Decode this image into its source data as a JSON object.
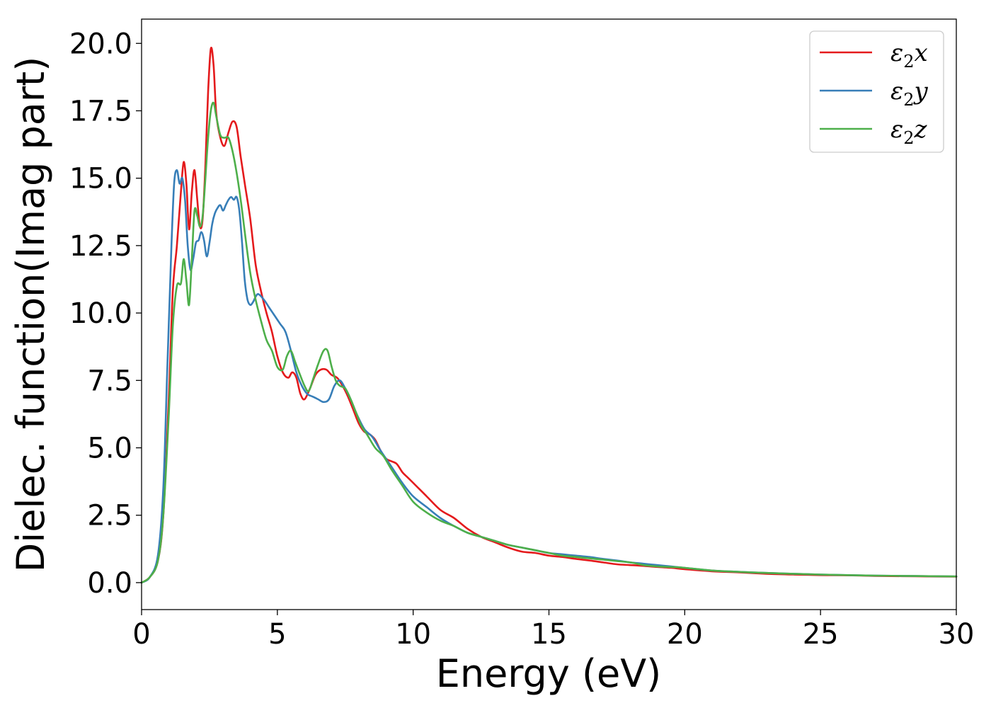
{
  "chart_data": {
    "type": "line",
    "xlabel": "Energy (eV)",
    "ylabel": "Dielec. function(Imag part)",
    "xlim": [
      0,
      30
    ],
    "ylim": [
      -1.0,
      20.9
    ],
    "x_ticks": [
      0,
      5,
      10,
      15,
      20,
      25,
      30
    ],
    "y_ticks": [
      0.0,
      2.5,
      5.0,
      7.5,
      10.0,
      12.5,
      15.0,
      17.5,
      20.0
    ],
    "x_tick_labels": [
      "0",
      "5",
      "10",
      "15",
      "20",
      "25",
      "30"
    ],
    "y_tick_labels": [
      "0.0",
      "2.5",
      "5.0",
      "7.5",
      "10.0",
      "12.5",
      "15.0",
      "17.5",
      "20.0"
    ],
    "grid": false,
    "legend_position": "top-right",
    "series": [
      {
        "name": "ε2x",
        "legend_symbol": "ε",
        "legend_sub": "2",
        "legend_var": "x",
        "color": "#e41a1c",
        "x": [
          0,
          0.3,
          0.6,
          0.8,
          1.0,
          1.15,
          1.3,
          1.45,
          1.55,
          1.65,
          1.75,
          1.85,
          1.95,
          2.05,
          2.15,
          2.25,
          2.35,
          2.45,
          2.55,
          2.65,
          2.75,
          2.9,
          3.05,
          3.2,
          3.35,
          3.5,
          3.65,
          3.8,
          4.0,
          4.2,
          4.4,
          4.6,
          4.8,
          5.0,
          5.2,
          5.4,
          5.55,
          5.7,
          5.85,
          6.0,
          6.2,
          6.4,
          6.6,
          6.8,
          7.0,
          7.2,
          7.4,
          7.6,
          7.8,
          8.0,
          8.2,
          8.4,
          8.6,
          8.8,
          9.0,
          9.2,
          9.4,
          9.6,
          9.8,
          10.0,
          10.5,
          11.0,
          11.5,
          12.0,
          12.5,
          13.0,
          13.5,
          14.0,
          14.5,
          15.0,
          15.5,
          16.0,
          16.5,
          17.0,
          17.5,
          18.0,
          18.5,
          19.0,
          19.5,
          20.0,
          21.0,
          22.0,
          23.0,
          24.0,
          25.0,
          26.0,
          27.0,
          28.0,
          29.0,
          30.0
        ],
        "values": [
          0,
          0.2,
          0.8,
          2.5,
          6.8,
          10.8,
          12.5,
          14.5,
          15.6,
          14.8,
          13.1,
          14.5,
          15.3,
          14.2,
          13.2,
          13.5,
          15.5,
          18.2,
          19.8,
          19.2,
          17.4,
          16.5,
          16.2,
          16.7,
          17.1,
          16.9,
          15.8,
          14.8,
          13.5,
          11.8,
          10.8,
          10.0,
          9.3,
          8.4,
          7.8,
          7.6,
          7.8,
          7.6,
          7.0,
          6.8,
          7.2,
          7.7,
          7.9,
          7.9,
          7.7,
          7.6,
          7.3,
          6.9,
          6.4,
          5.9,
          5.6,
          5.5,
          5.3,
          4.9,
          4.6,
          4.5,
          4.4,
          4.1,
          3.9,
          3.7,
          3.2,
          2.7,
          2.4,
          2.0,
          1.7,
          1.5,
          1.3,
          1.15,
          1.1,
          1.0,
          0.95,
          0.88,
          0.82,
          0.75,
          0.68,
          0.65,
          0.62,
          0.58,
          0.55,
          0.5,
          0.42,
          0.38,
          0.33,
          0.3,
          0.28,
          0.27,
          0.25,
          0.24,
          0.23,
          0.22
        ]
      },
      {
        "name": "ε2y",
        "legend_symbol": "ε",
        "legend_sub": "2",
        "legend_var": "y",
        "color": "#377eb8",
        "x": [
          0,
          0.3,
          0.6,
          0.8,
          0.95,
          1.1,
          1.2,
          1.3,
          1.4,
          1.5,
          1.6,
          1.7,
          1.8,
          1.9,
          2.0,
          2.1,
          2.2,
          2.3,
          2.4,
          2.5,
          2.6,
          2.7,
          2.8,
          2.9,
          3.0,
          3.1,
          3.2,
          3.3,
          3.4,
          3.5,
          3.6,
          3.7,
          3.8,
          3.9,
          4.0,
          4.1,
          4.2,
          4.3,
          4.5,
          4.7,
          4.9,
          5.1,
          5.3,
          5.5,
          5.7,
          5.9,
          6.1,
          6.3,
          6.5,
          6.7,
          6.9,
          7.1,
          7.3,
          7.5,
          7.7,
          7.9,
          8.2,
          8.5,
          8.8,
          9.2,
          9.6,
          10.0,
          10.5,
          11.0,
          11.5,
          12.0,
          12.5,
          13.0,
          13.5,
          14.0,
          14.5,
          15.0,
          15.5,
          16.0,
          16.5,
          17.0,
          17.5,
          18.0,
          18.5,
          19.0,
          19.5,
          20.0,
          21.0,
          22.0,
          23.0,
          24.0,
          25.0,
          26.0,
          27.0,
          28.0,
          29.0,
          30.0
        ],
        "values": [
          0,
          0.2,
          1.0,
          3.5,
          8.0,
          12.5,
          14.8,
          15.3,
          14.8,
          15.0,
          14.2,
          12.5,
          11.6,
          12.0,
          12.6,
          12.7,
          13.0,
          12.7,
          12.1,
          12.6,
          13.3,
          13.7,
          13.9,
          14.0,
          13.8,
          14.0,
          14.2,
          14.3,
          14.2,
          14.3,
          13.8,
          12.6,
          11.2,
          10.5,
          10.3,
          10.4,
          10.6,
          10.7,
          10.5,
          10.2,
          9.9,
          9.6,
          9.3,
          8.6,
          7.8,
          7.3,
          7.0,
          6.9,
          6.8,
          6.7,
          6.8,
          7.3,
          7.5,
          7.2,
          6.8,
          6.3,
          5.7,
          5.4,
          4.9,
          4.3,
          3.7,
          3.2,
          2.8,
          2.4,
          2.1,
          1.85,
          1.7,
          1.55,
          1.4,
          1.3,
          1.2,
          1.1,
          1.05,
          1.0,
          0.95,
          0.88,
          0.82,
          0.75,
          0.7,
          0.65,
          0.6,
          0.55,
          0.45,
          0.4,
          0.36,
          0.33,
          0.3,
          0.28,
          0.26,
          0.25,
          0.24,
          0.23
        ]
      },
      {
        "name": "ε2z",
        "legend_symbol": "ε",
        "legend_sub": "2",
        "legend_var": "z",
        "color": "#4daf4a",
        "x": [
          0,
          0.3,
          0.6,
          0.8,
          1.0,
          1.15,
          1.3,
          1.45,
          1.55,
          1.65,
          1.75,
          1.85,
          1.95,
          2.05,
          2.15,
          2.25,
          2.35,
          2.45,
          2.55,
          2.65,
          2.75,
          2.9,
          3.05,
          3.2,
          3.35,
          3.5,
          3.65,
          3.8,
          4.0,
          4.2,
          4.4,
          4.6,
          4.8,
          5.0,
          5.2,
          5.35,
          5.5,
          5.65,
          5.8,
          6.0,
          6.15,
          6.3,
          6.5,
          6.7,
          6.85,
          7.0,
          7.15,
          7.3,
          7.5,
          7.7,
          7.9,
          8.1,
          8.3,
          8.6,
          8.9,
          9.2,
          9.6,
          10.0,
          10.5,
          11.0,
          11.5,
          12.0,
          12.5,
          13.0,
          13.5,
          14.0,
          14.5,
          15.0,
          15.5,
          16.0,
          16.5,
          17.0,
          17.5,
          18.0,
          18.5,
          19.0,
          19.5,
          20.0,
          21.0,
          22.0,
          23.0,
          24.0,
          25.0,
          26.0,
          27.0,
          28.0,
          29.0,
          30.0
        ],
        "values": [
          0,
          0.2,
          0.8,
          2.5,
          6.2,
          9.5,
          11.0,
          11.1,
          12.0,
          11.2,
          10.3,
          12.0,
          13.8,
          13.6,
          13.2,
          13.6,
          15.0,
          16.5,
          17.5,
          17.8,
          17.3,
          16.6,
          16.5,
          16.5,
          16.0,
          15.2,
          14.2,
          13.0,
          11.5,
          10.5,
          9.7,
          9.0,
          8.6,
          8.0,
          7.9,
          8.4,
          8.6,
          8.2,
          7.8,
          7.3,
          7.1,
          7.5,
          8.1,
          8.6,
          8.6,
          8.0,
          7.5,
          7.3,
          7.2,
          6.8,
          6.3,
          5.8,
          5.5,
          5.0,
          4.7,
          4.2,
          3.6,
          3.0,
          2.6,
          2.3,
          2.1,
          1.85,
          1.7,
          1.55,
          1.4,
          1.3,
          1.2,
          1.1,
          1.0,
          0.95,
          0.9,
          0.85,
          0.8,
          0.75,
          0.65,
          0.6,
          0.58,
          0.55,
          0.45,
          0.4,
          0.36,
          0.33,
          0.3,
          0.28,
          0.26,
          0.25,
          0.24,
          0.23
        ]
      }
    ]
  }
}
